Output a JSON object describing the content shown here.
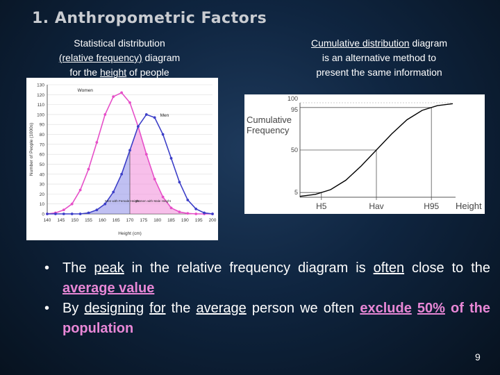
{
  "title": "1. Anthropometric Factors",
  "left_caption": {
    "line1": "Statistical distribution",
    "line2_u": "(relative frequency)",
    "line2_rest": " diagram",
    "line3_a": "for the ",
    "line3_u": "height",
    "line3_b": " of people"
  },
  "right_caption": {
    "line1_u": "Cumulative distribution",
    "line1_rest": " diagram",
    "line2": "is an alternative method to",
    "line3": "present the same information"
  },
  "chart_data": [
    {
      "type": "line",
      "xlabel": "Height (cm)",
      "ylabel": "Number of People (1000s)",
      "xlim": [
        140,
        200
      ],
      "ylim": [
        0,
        130
      ],
      "x_ticks": [
        "140",
        "145",
        "150",
        "155",
        "160",
        "165",
        "170",
        "175",
        "180",
        "185",
        "190",
        "195",
        "200"
      ],
      "y_ticks": [
        "0",
        "10",
        "20",
        "30",
        "40",
        "50",
        "60",
        "70",
        "80",
        "90",
        "100",
        "110",
        "120",
        "130"
      ],
      "series": [
        {
          "name": "Women",
          "color": "#e64fc8",
          "x": [
            140,
            143,
            146,
            149,
            152,
            155,
            158,
            161,
            164,
            167,
            170,
            173,
            176,
            179,
            182,
            185,
            188,
            191,
            194,
            197,
            200
          ],
          "values": [
            0,
            1,
            4,
            10,
            24,
            45,
            72,
            100,
            118,
            122,
            112,
            88,
            60,
            35,
            17,
            6,
            2,
            0.5,
            0,
            0,
            0
          ]
        },
        {
          "name": "Men",
          "color": "#3c3fc8",
          "x": [
            140,
            143,
            146,
            149,
            152,
            155,
            158,
            161,
            164,
            167,
            170,
            173,
            176,
            179,
            182,
            185,
            188,
            191,
            194,
            197,
            200
          ],
          "values": [
            0,
            0,
            0,
            0,
            0,
            1,
            4,
            10,
            22,
            40,
            64,
            88,
            100,
            97,
            80,
            56,
            32,
            14,
            5,
            1,
            0
          ]
        }
      ],
      "annotations": [
        "Women",
        "Men",
        "Men with Female Height",
        "Women with Male Height"
      ]
    },
    {
      "type": "line",
      "title": "Cumulative Frequency",
      "xlabel": "Height",
      "x_ticks": [
        "H5",
        "Hav",
        "H95"
      ],
      "y_ticks": [
        "5",
        "50",
        "95",
        "100"
      ],
      "ylim": [
        0,
        100
      ],
      "series": [
        {
          "name": "Cumulative",
          "color": "#000000",
          "x": [
            0,
            0.1,
            0.2,
            0.3,
            0.4,
            0.5,
            0.6,
            0.7,
            0.8,
            0.9,
            1.0
          ],
          "values": [
            1,
            3,
            8,
            18,
            33,
            50,
            67,
            82,
            92,
            97,
            99
          ]
        }
      ]
    }
  ],
  "bullets": [
    {
      "pre": "The ",
      "u1": "peak",
      "mid1": " in the relative frequency diagram is ",
      "u2": "often",
      "mid2": " close to the ",
      "hl": "average value",
      "post": ""
    },
    {
      "pre": "By ",
      "u1": "designing",
      "mid1": " ",
      "u2": "for",
      "mid2": " the ",
      "u3": "average",
      "mid3": " person we often ",
      "hl1": "exclude",
      "sp": " ",
      "hl2": "50%",
      "post": " of the population"
    }
  ],
  "page_number": "9"
}
